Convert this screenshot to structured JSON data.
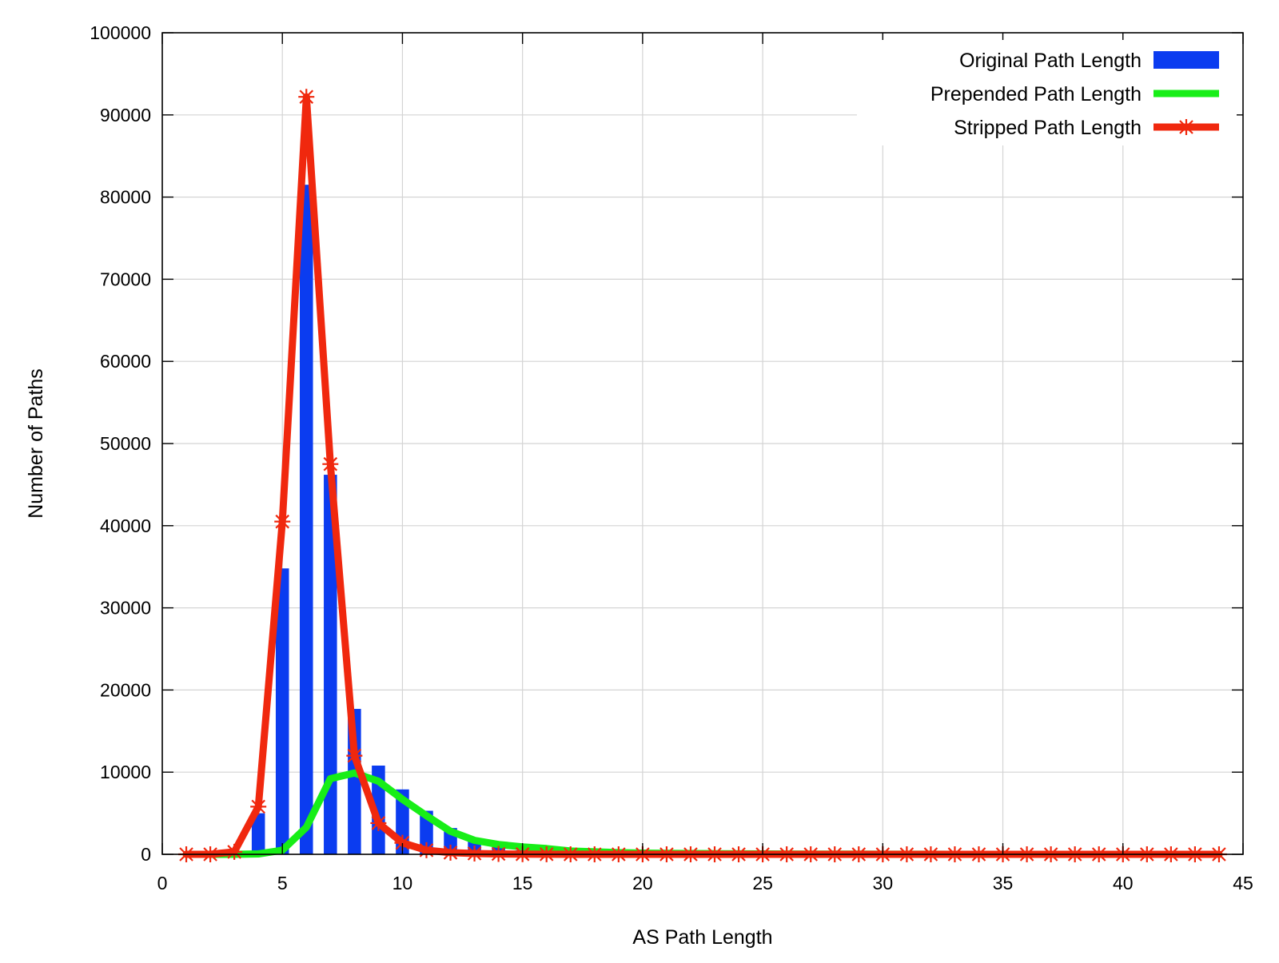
{
  "chart_data": {
    "type": "bar",
    "title": "",
    "xlabel": "AS Path Length",
    "ylabel": "Number of Paths",
    "xlim": [
      0,
      45
    ],
    "ylim": [
      0,
      100000
    ],
    "xticks": [
      0,
      5,
      10,
      15,
      20,
      25,
      30,
      35,
      40,
      45
    ],
    "yticks": [
      0,
      10000,
      20000,
      30000,
      40000,
      50000,
      60000,
      70000,
      80000,
      90000,
      100000
    ],
    "grid": true,
    "legend_position": "top-right",
    "series": [
      {
        "name": "Original Path Length",
        "kind": "bar",
        "color": "#0b3cf0",
        "x": [
          3,
          4,
          5,
          6,
          7,
          8,
          9,
          10,
          11,
          12,
          13,
          14,
          15,
          16,
          17,
          18,
          19,
          20
        ],
        "values": [
          300,
          5000,
          34800,
          81500,
          46200,
          17700,
          10800,
          7900,
          5300,
          3200,
          1800,
          900,
          500,
          300,
          150,
          80,
          40,
          20
        ]
      },
      {
        "name": "Prepended Path Length",
        "kind": "line",
        "color": "#17ee17",
        "x": [
          1,
          2,
          3,
          4,
          5,
          6,
          7,
          8,
          9,
          10,
          11,
          12,
          13,
          14,
          15,
          16,
          17,
          18,
          19,
          20,
          21,
          22,
          23,
          24,
          25,
          26,
          27,
          28,
          29,
          30,
          31,
          32,
          33,
          34,
          35,
          36,
          37,
          38,
          39,
          40,
          41,
          42,
          43,
          44
        ],
        "values": [
          0,
          0,
          0,
          50,
          500,
          3300,
          9200,
          9900,
          8900,
          6700,
          4700,
          2800,
          1700,
          1200,
          900,
          700,
          400,
          300,
          200,
          150,
          120,
          100,
          80,
          60,
          50,
          40,
          30,
          20,
          20,
          10,
          10,
          10,
          0,
          0,
          0,
          0,
          0,
          0,
          0,
          0,
          0,
          0,
          0,
          0
        ]
      },
      {
        "name": "Stripped Path Length",
        "kind": "linespoints",
        "color": "#f0280e",
        "x": [
          1,
          2,
          3,
          4,
          5,
          6,
          7,
          8,
          9,
          10,
          11,
          12,
          13,
          14,
          15,
          16,
          17,
          18,
          19,
          20,
          21,
          22,
          23,
          24,
          25,
          26,
          27,
          28,
          29,
          30,
          31,
          32,
          33,
          34,
          35,
          36,
          37,
          38,
          39,
          40,
          41,
          42,
          43,
          44
        ],
        "values": [
          0,
          0,
          300,
          5800,
          40500,
          92200,
          47500,
          12000,
          3800,
          1400,
          500,
          200,
          100,
          50,
          20,
          10,
          0,
          0,
          0,
          0,
          0,
          0,
          0,
          0,
          0,
          0,
          0,
          0,
          0,
          0,
          0,
          0,
          0,
          0,
          0,
          0,
          0,
          0,
          0,
          0,
          0,
          0,
          0,
          0
        ]
      }
    ]
  }
}
